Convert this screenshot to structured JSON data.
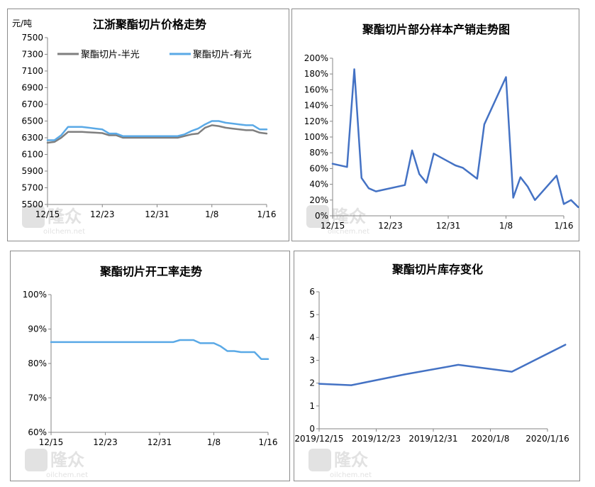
{
  "colors": {
    "gray_series": "#7f7f7f",
    "light_blue_series": "#5aa9e6",
    "dark_blue_series": "#4472c4",
    "watermark": "#e2e2e2"
  },
  "watermark": {
    "brand": "隆众",
    "site": "oilchem.net"
  },
  "chart_data": [
    {
      "id": "price",
      "type": "line",
      "title": "江浙聚酯切片价格走势",
      "unit_label": "元/吨",
      "ylim": [
        5500,
        7500
      ],
      "yticks": [
        7500,
        7300,
        7100,
        6900,
        6700,
        6500,
        6300,
        6100,
        5900,
        5700,
        5500
      ],
      "xlim": [
        0,
        32
      ],
      "xtick_labels": [
        "12/15",
        "12/23",
        "12/31",
        "1/8",
        "1/16"
      ],
      "xtick_positions": [
        0,
        8,
        16,
        24,
        32
      ],
      "legend": "top",
      "series": [
        {
          "name": "聚酯切片-半光",
          "color": "#7f7f7f",
          "x": [
            0,
            1,
            2,
            3,
            4,
            5,
            6,
            7,
            8,
            9,
            10,
            11,
            12,
            13,
            14,
            15,
            16,
            17,
            18,
            19,
            20,
            21,
            22,
            23,
            24,
            25,
            26,
            27,
            28,
            29,
            30,
            31,
            32
          ],
          "values": [
            6240,
            6250,
            6300,
            6370,
            6370,
            6370,
            6365,
            6360,
            6355,
            6330,
            6330,
            6300,
            6300,
            6300,
            6300,
            6300,
            6300,
            6300,
            6300,
            6300,
            6320,
            6340,
            6350,
            6420,
            6450,
            6440,
            6420,
            6410,
            6400,
            6390,
            6390,
            6360,
            6350
          ]
        },
        {
          "name": "聚酯切片-有光",
          "color": "#5aa9e6",
          "x": [
            0,
            1,
            2,
            3,
            4,
            5,
            6,
            7,
            8,
            9,
            10,
            11,
            12,
            13,
            14,
            15,
            16,
            17,
            18,
            19,
            20,
            21,
            22,
            23,
            24,
            25,
            26,
            27,
            28,
            29,
            30,
            31,
            32
          ],
          "values": [
            6270,
            6270,
            6330,
            6430,
            6430,
            6430,
            6420,
            6410,
            6400,
            6350,
            6350,
            6320,
            6320,
            6320,
            6320,
            6320,
            6320,
            6320,
            6320,
            6320,
            6340,
            6380,
            6410,
            6460,
            6500,
            6500,
            6480,
            6470,
            6460,
            6450,
            6450,
            6400,
            6400
          ]
        }
      ]
    },
    {
      "id": "ratio",
      "type": "line",
      "title": "聚酯切片部分样本产销走势图",
      "ylim": [
        0,
        200
      ],
      "yticks": [
        200,
        180,
        160,
        140,
        120,
        100,
        80,
        60,
        40,
        20,
        0
      ],
      "ytick_suffix": "%",
      "xlim": [
        0,
        32
      ],
      "xtick_labels": [
        "12/15",
        "12/23",
        "12/31",
        "1/8",
        "1/16"
      ],
      "xtick_positions": [
        0,
        8,
        16,
        24,
        32
      ],
      "series": [
        {
          "name": "",
          "color": "#4472c4",
          "x": [
            0,
            2,
            3,
            4,
            5,
            6,
            7,
            10,
            11,
            12,
            13,
            14,
            17,
            18,
            20,
            21,
            24,
            25,
            26,
            27,
            28,
            31,
            32,
            33,
            34
          ],
          "values": [
            66,
            62,
            186,
            48,
            35,
            31,
            33,
            39,
            83,
            53,
            42,
            79,
            64,
            61,
            47,
            116,
            176,
            23,
            49,
            37,
            20,
            51,
            15,
            20,
            11
          ]
        }
      ]
    },
    {
      "id": "operating",
      "type": "line",
      "title": "聚酯切片开工率走势",
      "ylim": [
        60,
        100
      ],
      "yticks": [
        100,
        90,
        80,
        70,
        60
      ],
      "ytick_suffix": "%",
      "xlim": [
        0,
        32
      ],
      "xtick_labels": [
        "12/15",
        "12/23",
        "12/31",
        "1/8",
        "1/16"
      ],
      "xtick_positions": [
        0,
        8,
        16,
        24,
        32
      ],
      "series": [
        {
          "name": "",
          "color": "#5aa9e6",
          "x": [
            0,
            1,
            2,
            3,
            4,
            5,
            6,
            7,
            8,
            9,
            10,
            11,
            12,
            13,
            14,
            15,
            16,
            17,
            18,
            19,
            20,
            21,
            22,
            23,
            24,
            25,
            26,
            27,
            28,
            29,
            30,
            31,
            32
          ],
          "values": [
            86.2,
            86.2,
            86.2,
            86.2,
            86.2,
            86.2,
            86.2,
            86.2,
            86.2,
            86.2,
            86.2,
            86.2,
            86.2,
            86.2,
            86.2,
            86.2,
            86.2,
            86.2,
            86.2,
            86.8,
            86.8,
            86.8,
            85.9,
            85.9,
            85.9,
            85.0,
            83.6,
            83.6,
            83.3,
            83.3,
            83.3,
            81.3,
            81.3
          ]
        }
      ]
    },
    {
      "id": "inventory",
      "type": "line",
      "title": "聚酯切片库存变化",
      "ylim": [
        0,
        6
      ],
      "yticks": [
        6,
        5,
        4,
        3,
        2,
        1,
        0
      ],
      "xlim": [
        0,
        32
      ],
      "xtick_labels": [
        "2019/12/15",
        "2019/12/23",
        "2019/12/31",
        "2020/1/8",
        "2020/1/16"
      ],
      "xtick_positions": [
        0,
        8,
        16,
        24,
        32
      ],
      "series": [
        {
          "name": "",
          "color": "#4472c4",
          "x": [
            0,
            4.5,
            12,
            19.5,
            27,
            34.5
          ],
          "values": [
            1.97,
            1.91,
            2.38,
            2.8,
            2.5,
            3.68
          ]
        }
      ]
    }
  ]
}
